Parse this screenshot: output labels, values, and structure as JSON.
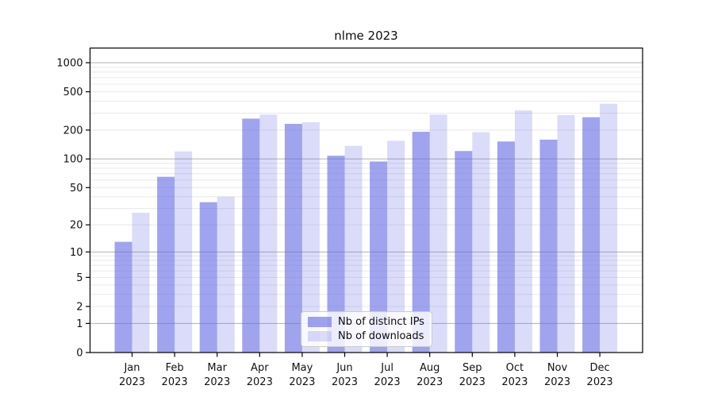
{
  "chart_data": {
    "type": "bar",
    "title": "nlme 2023",
    "categories": [
      "Jan",
      "Feb",
      "Mar",
      "Apr",
      "May",
      "Jun",
      "Jul",
      "Aug",
      "Sep",
      "Oct",
      "Nov",
      "Dec"
    ],
    "category_year": "2023",
    "series": [
      {
        "name": "Nb of distinct IPs",
        "color": "#666BE4",
        "fill_opacity": 0.62,
        "values": [
          13,
          65,
          35,
          263,
          232,
          108,
          94,
          192,
          121,
          152,
          159,
          272
        ]
      },
      {
        "name": "Nb of downloads",
        "color": "#666BE4",
        "fill_opacity": 0.235,
        "values": [
          27,
          120,
          40,
          290,
          241,
          137,
          155,
          290,
          190,
          320,
          286,
          375
        ]
      }
    ],
    "yscale": "log1p",
    "yticks": [
      1000,
      500,
      200,
      100,
      50,
      20,
      10,
      5,
      2,
      1,
      0
    ],
    "ylim": [
      0,
      1200
    ],
    "grid": {
      "on": true,
      "major_color": "#b0b0b0",
      "minor_color": "#e8e8e8"
    },
    "axis_color": "#000000",
    "text_color": "#111111",
    "legend_position": "lower-center"
  }
}
